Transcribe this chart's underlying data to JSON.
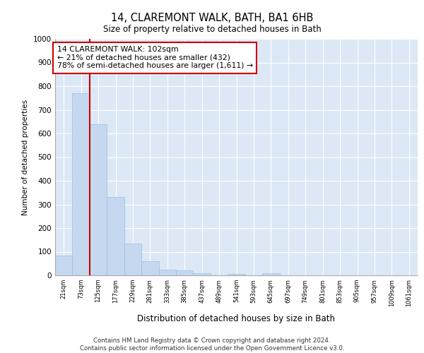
{
  "title": "14, CLAREMONT WALK, BATH, BA1 6HB",
  "subtitle": "Size of property relative to detached houses in Bath",
  "xlabel": "Distribution of detached houses by size in Bath",
  "ylabel": "Number of detached properties",
  "bar_color": "#c5d8f0",
  "bar_edge_color": "#9bbedd",
  "background_color": "#dce8f5",
  "grid_color": "#ffffff",
  "categories": [
    "21sqm",
    "73sqm",
    "125sqm",
    "177sqm",
    "229sqm",
    "281sqm",
    "333sqm",
    "385sqm",
    "437sqm",
    "489sqm",
    "541sqm",
    "593sqm",
    "645sqm",
    "697sqm",
    "749sqm",
    "801sqm",
    "853sqm",
    "905sqm",
    "957sqm",
    "1009sqm",
    "1061sqm"
  ],
  "values": [
    85,
    770,
    640,
    330,
    135,
    60,
    25,
    20,
    10,
    0,
    7,
    0,
    10,
    0,
    0,
    0,
    0,
    0,
    0,
    0,
    0
  ],
  "ylim": [
    0,
    1000
  ],
  "yticks": [
    0,
    100,
    200,
    300,
    400,
    500,
    600,
    700,
    800,
    900,
    1000
  ],
  "annotation_text": "14 CLAREMONT WALK: 102sqm\n← 21% of detached houses are smaller (432)\n78% of semi-detached houses are larger (1,611) →",
  "annotation_box_color": "#ffffff",
  "annotation_box_edge": "#cc0000",
  "property_line_color": "#cc0000",
  "footer_line1": "Contains HM Land Registry data © Crown copyright and database right 2024.",
  "footer_line2": "Contains public sector information licensed under the Open Government Licence v3.0."
}
